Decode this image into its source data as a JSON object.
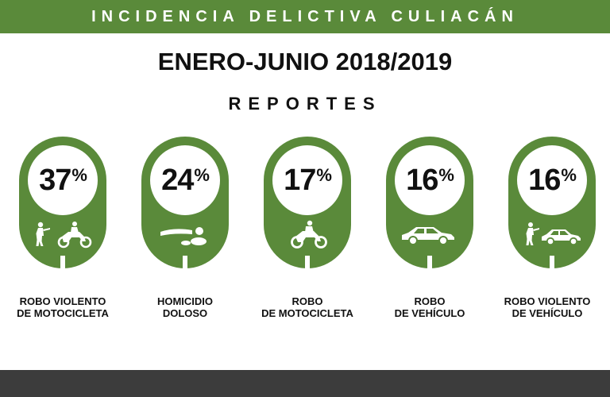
{
  "header": {
    "banner": "INCIDENCIA DELICTIVA CULIACÁN",
    "title": "ENERO-JUNIO 2018/2019",
    "subtitle": "REPORTES"
  },
  "colors": {
    "accent": "#5a8a3a",
    "text": "#111111",
    "footer": "#3c3c3c"
  },
  "stats": [
    {
      "value": "37",
      "sign": "%",
      "icon": "robber-motorcycle-icon",
      "line1": "ROBO VIOLENTO",
      "line2": "DE MOTOCICLETA"
    },
    {
      "value": "24",
      "sign": "%",
      "icon": "victim-body-icon",
      "line1": "HOMICIDIO",
      "line2": "DOLOSO"
    },
    {
      "value": "17",
      "sign": "%",
      "icon": "motorcycle-icon",
      "line1": "ROBO",
      "line2": "DE MOTOCICLETA"
    },
    {
      "value": "16",
      "sign": "%",
      "icon": "car-icon",
      "line1": "ROBO",
      "line2": "DE VEHÍCULO"
    },
    {
      "value": "16",
      "sign": "%",
      "icon": "robber-car-icon",
      "line1": "ROBO VIOLENTO",
      "line2": "DE VEHÍCULO"
    }
  ]
}
